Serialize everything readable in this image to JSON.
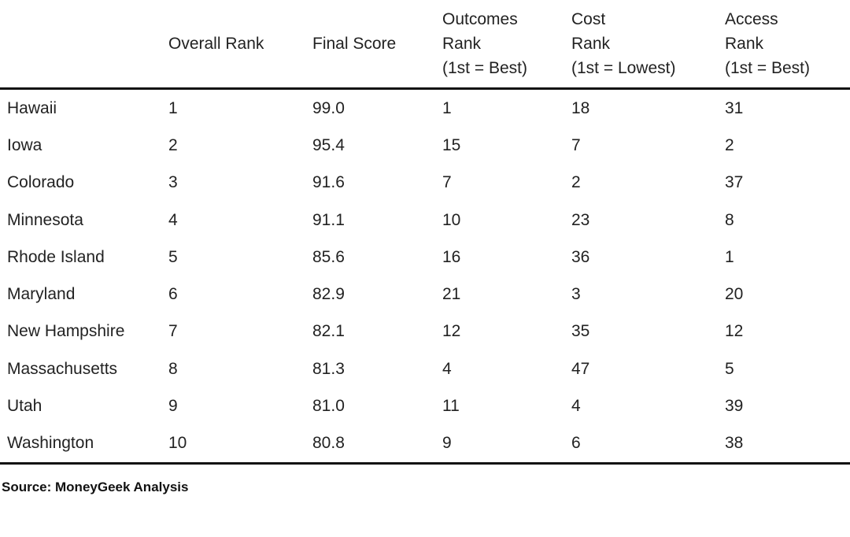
{
  "table": {
    "headers": [
      {
        "key": "state",
        "lines": [
          "",
          "",
          ""
        ]
      },
      {
        "key": "overall_rank",
        "lines": [
          "",
          "Overall Rank",
          ""
        ]
      },
      {
        "key": "final_score",
        "lines": [
          "",
          "Final Score",
          ""
        ]
      },
      {
        "key": "outcomes_rank",
        "lines": [
          "Outcomes",
          "Rank",
          "(1st = Best)"
        ]
      },
      {
        "key": "cost_rank",
        "lines": [
          "Cost",
          "Rank",
          "(1st = Lowest)"
        ]
      },
      {
        "key": "access_rank",
        "lines": [
          "Access",
          "Rank",
          "(1st = Best)"
        ]
      }
    ],
    "rows": [
      [
        "Hawaii",
        "1",
        "99.0",
        "1",
        "18",
        "31"
      ],
      [
        "Iowa",
        "2",
        "95.4",
        "15",
        "7",
        "2"
      ],
      [
        "Colorado",
        "3",
        "91.6",
        "7",
        "2",
        "37"
      ],
      [
        "Minnesota",
        "4",
        "91.1",
        "10",
        "23",
        "8"
      ],
      [
        "Rhode Island",
        "5",
        "85.6",
        "16",
        "36",
        "1"
      ],
      [
        "Maryland",
        "6",
        "82.9",
        "21",
        "3",
        "20"
      ],
      [
        "New Hampshire",
        "7",
        "82.1",
        "12",
        "35",
        "12"
      ],
      [
        "Massachusetts",
        "8",
        "81.3",
        "4",
        "47",
        "5"
      ],
      [
        "Utah",
        "9",
        "81.0",
        "11",
        "4",
        "39"
      ],
      [
        "Washington",
        "10",
        "80.8",
        "9",
        "6",
        "38"
      ]
    ]
  },
  "source": "Source: MoneyGeek Analysis"
}
